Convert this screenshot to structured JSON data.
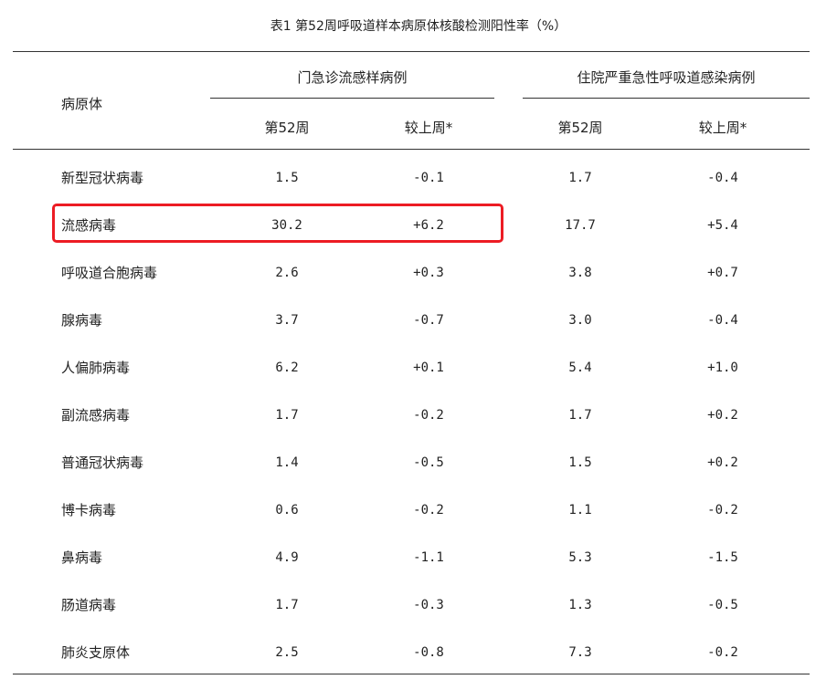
{
  "title": "表1  第52周呼吸道样本病原体核酸检测阳性率（%）",
  "header": {
    "pathogen_label": "病原体",
    "group_outpatient": "门急诊流感样病例",
    "group_inpatient": "住院严重急性呼吸道感染病例",
    "week_label": "第52周",
    "change_label": "较上周*"
  },
  "rows": [
    {
      "name": "新型冠状病毒",
      "op_week": "1.5",
      "op_change": "-0.1",
      "ip_week": "1.7",
      "ip_change": "-0.4"
    },
    {
      "name": "流感病毒",
      "op_week": "30.2",
      "op_change": "+6.2",
      "ip_week": "17.7",
      "ip_change": "+5.4"
    },
    {
      "name": "呼吸道合胞病毒",
      "op_week": "2.6",
      "op_change": "+0.3",
      "ip_week": "3.8",
      "ip_change": "+0.7"
    },
    {
      "name": "腺病毒",
      "op_week": "3.7",
      "op_change": "-0.7",
      "ip_week": "3.0",
      "ip_change": "-0.4"
    },
    {
      "name": "人偏肺病毒",
      "op_week": "6.2",
      "op_change": "+0.1",
      "ip_week": "5.4",
      "ip_change": "+1.0"
    },
    {
      "name": "副流感病毒",
      "op_week": "1.7",
      "op_change": "-0.2",
      "ip_week": "1.7",
      "ip_change": "+0.2"
    },
    {
      "name": "普通冠状病毒",
      "op_week": "1.4",
      "op_change": "-0.5",
      "ip_week": "1.5",
      "ip_change": "+0.2"
    },
    {
      "name": "博卡病毒",
      "op_week": "0.6",
      "op_change": "-0.2",
      "ip_week": "1.1",
      "ip_change": "-0.2"
    },
    {
      "name": "鼻病毒",
      "op_week": "4.9",
      "op_change": "-1.1",
      "ip_week": "5.3",
      "ip_change": "-1.5"
    },
    {
      "name": "肠道病毒",
      "op_week": "1.7",
      "op_change": "-0.3",
      "ip_week": "1.3",
      "ip_change": "-0.5"
    },
    {
      "name": "肺炎支原体",
      "op_week": "2.5",
      "op_change": "-0.8",
      "ip_week": "7.3",
      "ip_change": "-0.2"
    }
  ],
  "highlight_color": "#ec1c24"
}
